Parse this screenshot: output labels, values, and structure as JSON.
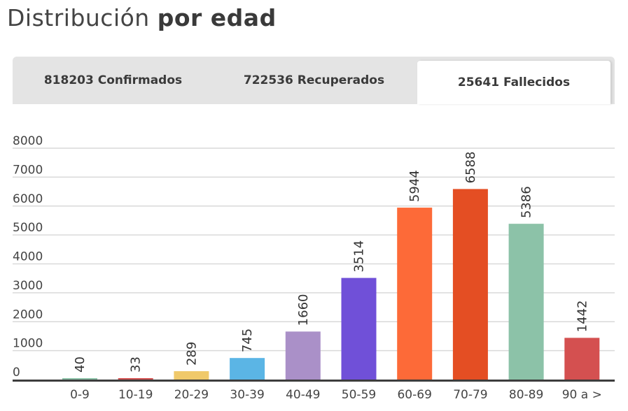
{
  "header": {
    "title_regular": "Distribución",
    "title_bold": "por edad"
  },
  "tabs": [
    {
      "label": "818203 Confirmados",
      "active": false
    },
    {
      "label": "722536 Recuperados",
      "active": false
    },
    {
      "label": "25641 Fallecidos",
      "active": true
    }
  ],
  "chart_data": {
    "type": "bar",
    "title": "",
    "xlabel": "",
    "ylabel": "",
    "categories": [
      "0-9",
      "10-19",
      "20-29",
      "30-39",
      "40-49",
      "50-59",
      "60-69",
      "70-79",
      "80-89",
      "90 a >"
    ],
    "values": [
      40,
      33,
      289,
      745,
      1660,
      3514,
      5944,
      6588,
      5386,
      1442
    ],
    "colors": [
      "#8cc2a8",
      "#d45050",
      "#f0c96a",
      "#5bb5e5",
      "#aa90c8",
      "#7050d8",
      "#fd6a38",
      "#e44e23",
      "#8cc2a8",
      "#d45050"
    ],
    "ylim": [
      0,
      8000
    ],
    "yticks": [
      0,
      1000,
      2000,
      3000,
      4000,
      5000,
      6000,
      7000,
      8000
    ],
    "grid": true,
    "legend": "none",
    "data_labels_rotated": true
  }
}
